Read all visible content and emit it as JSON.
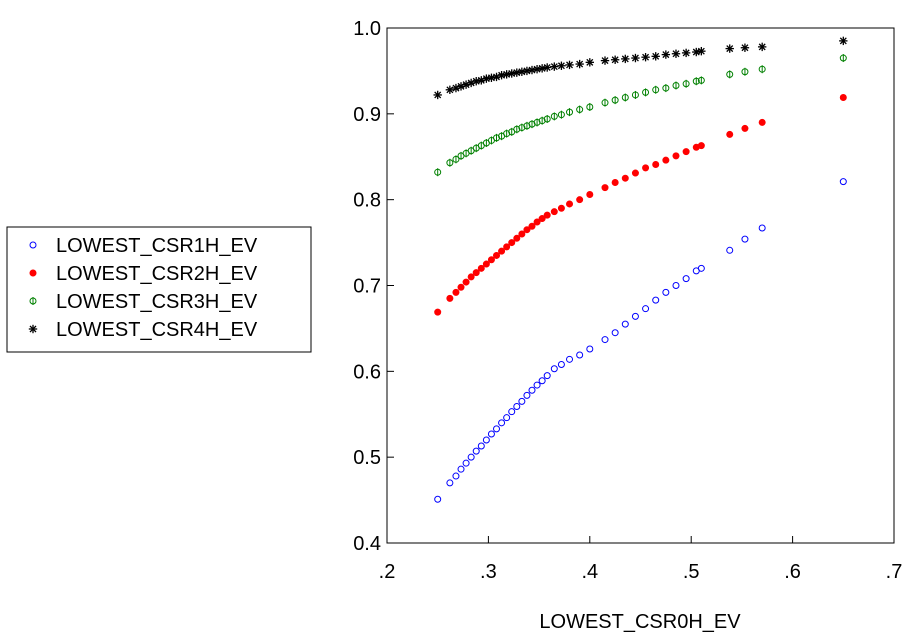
{
  "chart_data": {
    "type": "scatter",
    "title": "",
    "xlabel": "LOWEST_CSR0H_EV",
    "ylabel": "",
    "xlim": [
      0.2,
      0.7
    ],
    "ylim": [
      0.4,
      1.0
    ],
    "x_ticks": [
      0.2,
      0.3,
      0.4,
      0.5,
      0.6,
      0.7
    ],
    "x_tick_labels": [
      ".2",
      ".3",
      ".4",
      ".5",
      ".6",
      ".7"
    ],
    "y_ticks": [
      0.4,
      0.5,
      0.6,
      0.7,
      0.8,
      0.9,
      1.0
    ],
    "y_tick_labels": [
      "0.4",
      "0.5",
      "0.6",
      "0.7",
      "0.8",
      "0.9",
      "1.0"
    ],
    "grid": false,
    "legend_position": "left-outside",
    "series": [
      {
        "name": "LOWEST_CSR1H_EV",
        "marker": "open-circle",
        "color": "#0000ff",
        "points": [
          [
            0.25,
            0.451
          ],
          [
            0.262,
            0.47
          ],
          [
            0.268,
            0.478
          ],
          [
            0.273,
            0.486
          ],
          [
            0.278,
            0.493
          ],
          [
            0.283,
            0.5
          ],
          [
            0.288,
            0.507
          ],
          [
            0.293,
            0.513
          ],
          [
            0.298,
            0.52
          ],
          [
            0.303,
            0.527
          ],
          [
            0.308,
            0.533
          ],
          [
            0.313,
            0.54
          ],
          [
            0.318,
            0.546
          ],
          [
            0.323,
            0.553
          ],
          [
            0.328,
            0.559
          ],
          [
            0.333,
            0.565
          ],
          [
            0.338,
            0.572
          ],
          [
            0.343,
            0.578
          ],
          [
            0.348,
            0.584
          ],
          [
            0.353,
            0.589
          ],
          [
            0.358,
            0.595
          ],
          [
            0.365,
            0.603
          ],
          [
            0.372,
            0.608
          ],
          [
            0.38,
            0.614
          ],
          [
            0.39,
            0.619
          ],
          [
            0.4,
            0.626
          ],
          [
            0.415,
            0.637
          ],
          [
            0.425,
            0.645
          ],
          [
            0.435,
            0.655
          ],
          [
            0.445,
            0.664
          ],
          [
            0.455,
            0.673
          ],
          [
            0.465,
            0.683
          ],
          [
            0.475,
            0.692
          ],
          [
            0.485,
            0.7
          ],
          [
            0.495,
            0.708
          ],
          [
            0.505,
            0.717
          ],
          [
            0.51,
            0.72
          ],
          [
            0.538,
            0.741
          ],
          [
            0.553,
            0.754
          ],
          [
            0.57,
            0.767
          ],
          [
            0.65,
            0.821
          ]
        ]
      },
      {
        "name": "LOWEST_CSR2H_EV",
        "marker": "filled-circle",
        "color": "#ff0000",
        "points": [
          [
            0.25,
            0.669
          ],
          [
            0.262,
            0.685
          ],
          [
            0.268,
            0.692
          ],
          [
            0.273,
            0.698
          ],
          [
            0.278,
            0.704
          ],
          [
            0.283,
            0.71
          ],
          [
            0.288,
            0.715
          ],
          [
            0.293,
            0.72
          ],
          [
            0.298,
            0.725
          ],
          [
            0.303,
            0.73
          ],
          [
            0.308,
            0.735
          ],
          [
            0.313,
            0.74
          ],
          [
            0.318,
            0.745
          ],
          [
            0.323,
            0.75
          ],
          [
            0.328,
            0.755
          ],
          [
            0.333,
            0.76
          ],
          [
            0.338,
            0.765
          ],
          [
            0.343,
            0.769
          ],
          [
            0.348,
            0.774
          ],
          [
            0.353,
            0.778
          ],
          [
            0.358,
            0.782
          ],
          [
            0.365,
            0.786
          ],
          [
            0.372,
            0.79
          ],
          [
            0.38,
            0.795
          ],
          [
            0.39,
            0.8
          ],
          [
            0.4,
            0.806
          ],
          [
            0.415,
            0.814
          ],
          [
            0.425,
            0.82
          ],
          [
            0.435,
            0.825
          ],
          [
            0.445,
            0.831
          ],
          [
            0.455,
            0.837
          ],
          [
            0.465,
            0.841
          ],
          [
            0.475,
            0.846
          ],
          [
            0.485,
            0.851
          ],
          [
            0.495,
            0.856
          ],
          [
            0.505,
            0.861
          ],
          [
            0.51,
            0.863
          ],
          [
            0.538,
            0.876
          ],
          [
            0.553,
            0.883
          ],
          [
            0.57,
            0.89
          ],
          [
            0.65,
            0.919
          ]
        ]
      },
      {
        "name": "LOWEST_CSR3H_EV",
        "marker": "circle-with-bar",
        "color": "#008000",
        "points": [
          [
            0.25,
            0.832
          ],
          [
            0.262,
            0.843
          ],
          [
            0.268,
            0.847
          ],
          [
            0.273,
            0.851
          ],
          [
            0.278,
            0.854
          ],
          [
            0.283,
            0.857
          ],
          [
            0.288,
            0.86
          ],
          [
            0.293,
            0.863
          ],
          [
            0.298,
            0.866
          ],
          [
            0.303,
            0.869
          ],
          [
            0.308,
            0.872
          ],
          [
            0.313,
            0.874
          ],
          [
            0.318,
            0.877
          ],
          [
            0.323,
            0.879
          ],
          [
            0.328,
            0.882
          ],
          [
            0.333,
            0.884
          ],
          [
            0.338,
            0.886
          ],
          [
            0.343,
            0.888
          ],
          [
            0.348,
            0.89
          ],
          [
            0.353,
            0.892
          ],
          [
            0.358,
            0.894
          ],
          [
            0.365,
            0.897
          ],
          [
            0.372,
            0.899
          ],
          [
            0.38,
            0.902
          ],
          [
            0.39,
            0.905
          ],
          [
            0.4,
            0.908
          ],
          [
            0.415,
            0.913
          ],
          [
            0.425,
            0.916
          ],
          [
            0.435,
            0.919
          ],
          [
            0.445,
            0.922
          ],
          [
            0.455,
            0.925
          ],
          [
            0.465,
            0.928
          ],
          [
            0.475,
            0.93
          ],
          [
            0.485,
            0.933
          ],
          [
            0.495,
            0.935
          ],
          [
            0.505,
            0.938
          ],
          [
            0.51,
            0.939
          ],
          [
            0.538,
            0.946
          ],
          [
            0.553,
            0.949
          ],
          [
            0.57,
            0.952
          ],
          [
            0.65,
            0.965
          ]
        ]
      },
      {
        "name": "LOWEST_CSR4H_EV",
        "marker": "asterisk",
        "color": "#000000",
        "points": [
          [
            0.25,
            0.922
          ],
          [
            0.262,
            0.928
          ],
          [
            0.268,
            0.93
          ],
          [
            0.273,
            0.932
          ],
          [
            0.278,
            0.934
          ],
          [
            0.283,
            0.936
          ],
          [
            0.288,
            0.938
          ],
          [
            0.293,
            0.939
          ],
          [
            0.298,
            0.941
          ],
          [
            0.303,
            0.942
          ],
          [
            0.308,
            0.943
          ],
          [
            0.313,
            0.945
          ],
          [
            0.318,
            0.946
          ],
          [
            0.323,
            0.947
          ],
          [
            0.328,
            0.948
          ],
          [
            0.333,
            0.949
          ],
          [
            0.338,
            0.95
          ],
          [
            0.343,
            0.951
          ],
          [
            0.348,
            0.952
          ],
          [
            0.353,
            0.953
          ],
          [
            0.358,
            0.954
          ],
          [
            0.365,
            0.955
          ],
          [
            0.372,
            0.956
          ],
          [
            0.38,
            0.957
          ],
          [
            0.39,
            0.958
          ],
          [
            0.4,
            0.96
          ],
          [
            0.415,
            0.962
          ],
          [
            0.425,
            0.963
          ],
          [
            0.435,
            0.964
          ],
          [
            0.445,
            0.965
          ],
          [
            0.455,
            0.966
          ],
          [
            0.465,
            0.967
          ],
          [
            0.475,
            0.969
          ],
          [
            0.485,
            0.97
          ],
          [
            0.495,
            0.971
          ],
          [
            0.505,
            0.972
          ],
          [
            0.51,
            0.973
          ],
          [
            0.538,
            0.976
          ],
          [
            0.553,
            0.977
          ],
          [
            0.57,
            0.978
          ],
          [
            0.65,
            0.985
          ]
        ]
      }
    ]
  }
}
